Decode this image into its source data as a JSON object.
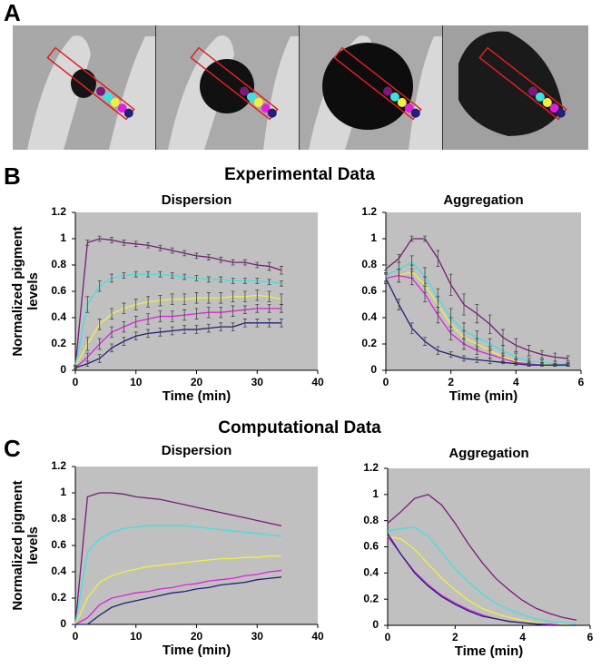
{
  "panel_labels": [
    "A",
    "B",
    "C"
  ],
  "section_titles": [
    "Experimental Data",
    "Computational Data"
  ],
  "chart_data": [
    {
      "type": "line",
      "title": "Dispersion",
      "xlabel": "Time (min)",
      "ylabel": [
        "Normalized pigment",
        "levels"
      ],
      "background": "#c0c0c0",
      "xlim": [
        0,
        40
      ],
      "ylim": [
        0,
        1.2
      ],
      "xticks": [
        0,
        10,
        20,
        30,
        40
      ],
      "yticks": [
        0,
        0.2,
        0.4,
        0.6,
        0.8,
        1,
        1.2
      ],
      "x": [
        0,
        2,
        4,
        6,
        8,
        10,
        12,
        14,
        16,
        18,
        20,
        22,
        24,
        26,
        28,
        30,
        32,
        34
      ],
      "series": [
        {
          "color": "#7b1a7b",
          "values": [
            0.03,
            0.97,
            1.0,
            0.99,
            0.97,
            0.96,
            0.95,
            0.93,
            0.91,
            0.89,
            0.87,
            0.86,
            0.84,
            0.82,
            0.82,
            0.8,
            0.79,
            0.76
          ],
          "errors": [
            0.01,
            0.02,
            0.02,
            0.02,
            0.02,
            0.02,
            0.02,
            0.02,
            0.02,
            0.02,
            0.02,
            0.02,
            0.02,
            0.02,
            0.02,
            0.02,
            0.03,
            0.03
          ]
        },
        {
          "color": "#40e0e0",
          "values": [
            0.03,
            0.5,
            0.64,
            0.7,
            0.72,
            0.73,
            0.73,
            0.73,
            0.72,
            0.71,
            0.7,
            0.69,
            0.69,
            0.68,
            0.68,
            0.68,
            0.67,
            0.66
          ],
          "errors": [
            0.01,
            0.06,
            0.04,
            0.03,
            0.02,
            0.02,
            0.02,
            0.02,
            0.02,
            0.02,
            0.02,
            0.02,
            0.02,
            0.02,
            0.02,
            0.02,
            0.02,
            0.02
          ]
        },
        {
          "color": "#f0f040",
          "values": [
            0.03,
            0.2,
            0.35,
            0.43,
            0.47,
            0.5,
            0.52,
            0.53,
            0.54,
            0.54,
            0.55,
            0.55,
            0.55,
            0.56,
            0.56,
            0.57,
            0.56,
            0.54
          ],
          "errors": [
            0.01,
            0.05,
            0.04,
            0.04,
            0.04,
            0.04,
            0.04,
            0.04,
            0.04,
            0.04,
            0.04,
            0.04,
            0.04,
            0.04,
            0.04,
            0.04,
            0.04,
            0.04
          ]
        },
        {
          "color": "#e020e0",
          "values": [
            0.02,
            0.1,
            0.2,
            0.29,
            0.33,
            0.37,
            0.39,
            0.41,
            0.41,
            0.42,
            0.43,
            0.44,
            0.44,
            0.45,
            0.46,
            0.47,
            0.47,
            0.47
          ],
          "errors": [
            0.01,
            0.03,
            0.04,
            0.04,
            0.04,
            0.04,
            0.04,
            0.04,
            0.04,
            0.04,
            0.04,
            0.04,
            0.04,
            0.04,
            0.03,
            0.03,
            0.03,
            0.03
          ]
        },
        {
          "color": "#20207a",
          "values": [
            0.02,
            0.05,
            0.09,
            0.17,
            0.22,
            0.26,
            0.28,
            0.29,
            0.3,
            0.31,
            0.31,
            0.32,
            0.33,
            0.33,
            0.36,
            0.36,
            0.36,
            0.36
          ],
          "errors": [
            0.01,
            0.02,
            0.03,
            0.03,
            0.03,
            0.03,
            0.03,
            0.03,
            0.03,
            0.03,
            0.03,
            0.03,
            0.03,
            0.03,
            0.03,
            0.03,
            0.03,
            0.03
          ]
        }
      ]
    },
    {
      "type": "line",
      "title": "Aggregation",
      "xlabel": "Time (min)",
      "background": "#c0c0c0",
      "xlim": [
        0,
        6
      ],
      "ylim": [
        0,
        1.2
      ],
      "xticks": [
        0,
        2,
        4,
        6
      ],
      "yticks": [
        0,
        0.2,
        0.4,
        0.6,
        0.8,
        1,
        1.2
      ],
      "x": [
        0,
        0.4,
        0.8,
        1.2,
        1.6,
        2,
        2.4,
        2.8,
        3.2,
        3.6,
        4,
        4.4,
        4.8,
        5.2,
        5.6
      ],
      "series": [
        {
          "color": "#7b1a7b",
          "values": [
            0.77,
            0.85,
            1.0,
            1.0,
            0.85,
            0.65,
            0.5,
            0.43,
            0.35,
            0.25,
            0.19,
            0.15,
            0.12,
            0.1,
            0.09
          ],
          "errors": [
            0.03,
            0.03,
            0.02,
            0.02,
            0.06,
            0.08,
            0.08,
            0.07,
            0.07,
            0.06,
            0.05,
            0.04,
            0.03,
            0.03,
            0.02
          ]
        },
        {
          "color": "#40e0e0",
          "values": [
            0.72,
            0.77,
            0.82,
            0.72,
            0.55,
            0.4,
            0.3,
            0.25,
            0.2,
            0.15,
            0.1,
            0.07,
            0.06,
            0.05,
            0.05
          ],
          "errors": [
            0.04,
            0.05,
            0.05,
            0.06,
            0.07,
            0.07,
            0.06,
            0.05,
            0.04,
            0.04,
            0.03,
            0.02,
            0.02,
            0.02,
            0.01
          ]
        },
        {
          "color": "#f0f040",
          "values": [
            0.7,
            0.72,
            0.75,
            0.65,
            0.5,
            0.35,
            0.25,
            0.2,
            0.15,
            0.1,
            0.07,
            0.05,
            0.05,
            0.04,
            0.04
          ],
          "errors": [
            0.04,
            0.05,
            0.05,
            0.06,
            0.06,
            0.05,
            0.05,
            0.04,
            0.03,
            0.03,
            0.02,
            0.02,
            0.01,
            0.01,
            0.01
          ]
        },
        {
          "color": "#e020e0",
          "values": [
            0.7,
            0.72,
            0.7,
            0.58,
            0.42,
            0.28,
            0.2,
            0.15,
            0.12,
            0.09,
            0.06,
            0.05,
            0.04,
            0.04,
            0.04
          ],
          "errors": [
            0.04,
            0.05,
            0.05,
            0.06,
            0.06,
            0.05,
            0.04,
            0.03,
            0.03,
            0.02,
            0.02,
            0.01,
            0.01,
            0.01,
            0.01
          ]
        },
        {
          "color": "#20207a",
          "values": [
            0.7,
            0.5,
            0.32,
            0.22,
            0.15,
            0.12,
            0.09,
            0.08,
            0.07,
            0.06,
            0.05,
            0.04,
            0.04,
            0.04,
            0.04
          ],
          "errors": [
            0.03,
            0.04,
            0.04,
            0.03,
            0.03,
            0.02,
            0.02,
            0.02,
            0.02,
            0.01,
            0.01,
            0.01,
            0.01,
            0.01,
            0.01
          ]
        }
      ]
    },
    {
      "type": "line",
      "title": "Dispersion",
      "xlabel": "Time (min)",
      "ylabel": [
        "Normalized pigment",
        "levels"
      ],
      "background": "#c0c0c0",
      "xlim": [
        0,
        40
      ],
      "ylim": [
        0,
        1.2
      ],
      "xticks": [
        0,
        10,
        20,
        30,
        40
      ],
      "yticks": [
        0,
        0.2,
        0.4,
        0.6,
        0.8,
        1,
        1.2
      ],
      "x": [
        0,
        2,
        4,
        6,
        8,
        10,
        12,
        14,
        16,
        18,
        20,
        22,
        24,
        26,
        28,
        30,
        32,
        34
      ],
      "series": [
        {
          "color": "#7b1a7b",
          "values": [
            0,
            0.97,
            1.0,
            1.0,
            0.99,
            0.97,
            0.96,
            0.95,
            0.93,
            0.91,
            0.89,
            0.87,
            0.85,
            0.83,
            0.81,
            0.79,
            0.77,
            0.75
          ]
        },
        {
          "color": "#40e0e0",
          "values": [
            0,
            0.55,
            0.65,
            0.7,
            0.73,
            0.74,
            0.75,
            0.75,
            0.75,
            0.75,
            0.74,
            0.73,
            0.72,
            0.71,
            0.7,
            0.69,
            0.68,
            0.67
          ]
        },
        {
          "color": "#f0f040",
          "values": [
            0,
            0.2,
            0.32,
            0.37,
            0.4,
            0.42,
            0.44,
            0.45,
            0.46,
            0.47,
            0.48,
            0.49,
            0.5,
            0.5,
            0.51,
            0.51,
            0.52,
            0.52
          ]
        },
        {
          "color": "#e020e0",
          "values": [
            0,
            0.05,
            0.15,
            0.2,
            0.22,
            0.24,
            0.25,
            0.27,
            0.28,
            0.3,
            0.31,
            0.33,
            0.34,
            0.35,
            0.37,
            0.38,
            0.4,
            0.41
          ]
        },
        {
          "color": "#20207a",
          "values": [
            0,
            0,
            0.07,
            0.13,
            0.16,
            0.18,
            0.2,
            0.22,
            0.24,
            0.25,
            0.27,
            0.28,
            0.3,
            0.31,
            0.32,
            0.34,
            0.35,
            0.36
          ]
        }
      ]
    },
    {
      "type": "line",
      "title": "Aggregation",
      "xlabel": "Time (min)",
      "background": "#c0c0c0",
      "xlim": [
        0,
        6
      ],
      "ylim": [
        0,
        1.2
      ],
      "xticks": [
        0,
        2,
        4,
        6
      ],
      "yticks": [
        0,
        0.2,
        0.4,
        0.6,
        0.8,
        1,
        1.2
      ],
      "x": [
        0,
        0.4,
        0.8,
        1.2,
        1.6,
        2,
        2.4,
        2.8,
        3.2,
        3.6,
        4,
        4.4,
        4.8,
        5.2,
        5.6
      ],
      "series": [
        {
          "color": "#7b1a7b",
          "values": [
            0.78,
            0.87,
            0.97,
            1.0,
            0.92,
            0.78,
            0.62,
            0.48,
            0.36,
            0.27,
            0.19,
            0.13,
            0.09,
            0.06,
            0.04
          ]
        },
        {
          "color": "#40e0e0",
          "values": [
            0.72,
            0.74,
            0.75,
            0.68,
            0.56,
            0.43,
            0.33,
            0.24,
            0.17,
            0.12,
            0.08,
            0.05,
            0.03,
            0.02,
            0.01
          ]
        },
        {
          "color": "#f0f040",
          "values": [
            0.68,
            0.66,
            0.58,
            0.47,
            0.36,
            0.27,
            0.19,
            0.13,
            0.09,
            0.06,
            0.04,
            0.02,
            0.01,
            0.01,
            0
          ]
        },
        {
          "color": "#e020e0",
          "values": [
            0.68,
            0.54,
            0.41,
            0.31,
            0.23,
            0.17,
            0.12,
            0.08,
            0.05,
            0.03,
            0.02,
            0.01,
            0.01,
            0,
            0
          ]
        },
        {
          "color": "#20207a",
          "values": [
            0.7,
            0.54,
            0.4,
            0.3,
            0.22,
            0.16,
            0.11,
            0.07,
            0.05,
            0.03,
            0.02,
            0.01,
            0,
            0,
            0
          ]
        }
      ]
    }
  ]
}
